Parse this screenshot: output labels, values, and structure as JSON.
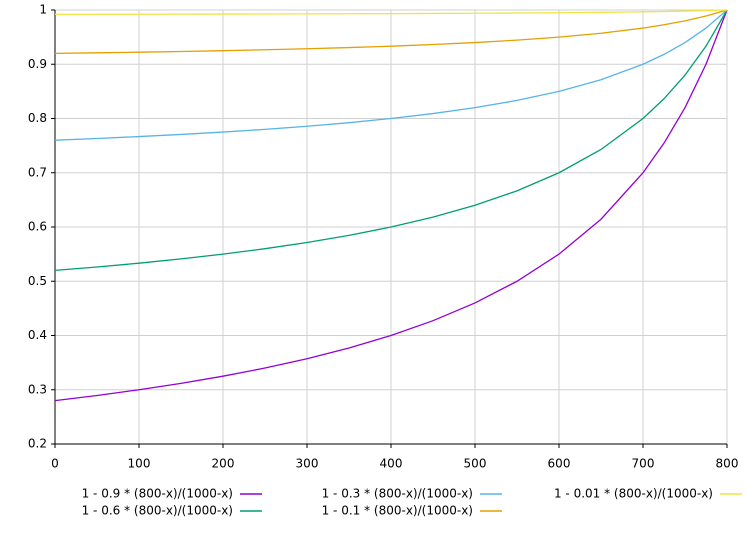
{
  "chart_data": {
    "type": "line",
    "x": [
      0,
      50,
      100,
      150,
      200,
      250,
      300,
      350,
      400,
      450,
      500,
      550,
      600,
      650,
      700,
      725,
      750,
      775,
      800
    ],
    "series": [
      {
        "name": "1 - 0.9 * (800-x)/(1000-x)",
        "color": "#9400d3",
        "values": [
          0.28,
          0.28947,
          0.3,
          0.31176,
          0.325,
          0.34,
          0.35714,
          0.37692,
          0.4,
          0.42727,
          0.46,
          0.5,
          0.55,
          0.61429,
          0.7,
          0.75455,
          0.82,
          0.9,
          1
        ]
      },
      {
        "name": "1 - 0.6 * (800-x)/(1000-x)",
        "color": "#009e73",
        "values": [
          0.52,
          0.52632,
          0.53333,
          0.54118,
          0.55,
          0.56,
          0.57143,
          0.58462,
          0.6,
          0.61818,
          0.64,
          0.66667,
          0.7,
          0.74286,
          0.8,
          0.83636,
          0.88,
          0.93333,
          1
        ]
      },
      {
        "name": "1 - 0.3 * (800-x)/(1000-x)",
        "color": "#56b4e9",
        "values": [
          0.76,
          0.76316,
          0.76667,
          0.77059,
          0.775,
          0.78,
          0.78571,
          0.79231,
          0.8,
          0.80909,
          0.82,
          0.83333,
          0.85,
          0.87143,
          0.9,
          0.91818,
          0.94,
          0.96667,
          1
        ]
      },
      {
        "name": "1 - 0.1 * (800-x)/(1000-x)",
        "color": "#e69f00",
        "values": [
          0.92,
          0.92105,
          0.92222,
          0.92353,
          0.925,
          0.92667,
          0.92857,
          0.93077,
          0.93333,
          0.93636,
          0.94,
          0.94444,
          0.95,
          0.95714,
          0.96667,
          0.97273,
          0.98,
          0.98889,
          1
        ]
      },
      {
        "name": "1 - 0.01 * (800-x)/(1000-x)",
        "color": "#f0e442",
        "values": [
          0.992,
          0.99211,
          0.99222,
          0.99235,
          0.9925,
          0.99267,
          0.99286,
          0.99308,
          0.99333,
          0.99364,
          0.994,
          0.99444,
          0.995,
          0.99571,
          0.99667,
          0.99727,
          0.998,
          0.99889,
          1
        ]
      }
    ],
    "xlim": [
      0,
      800
    ],
    "xticks": [
      0,
      100,
      200,
      300,
      400,
      500,
      600,
      700,
      800
    ],
    "ylim": [
      0.2,
      1
    ],
    "yticks": [
      0.2,
      0.3,
      0.4,
      0.5,
      0.6,
      0.7,
      0.8,
      0.9,
      1
    ],
    "grid": true
  }
}
